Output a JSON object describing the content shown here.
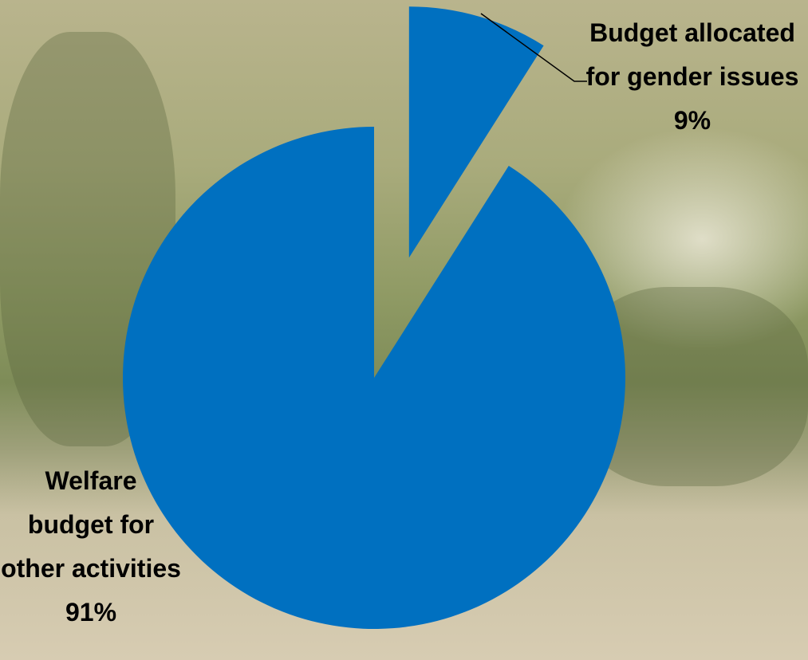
{
  "chart_data": {
    "type": "pie",
    "categories": [
      "Budget allocated for gender issues",
      "Welfare budget for other activities"
    ],
    "values": [
      9,
      91
    ],
    "value_labels": [
      "9%",
      "91%"
    ],
    "color": "#0070c0"
  }
}
